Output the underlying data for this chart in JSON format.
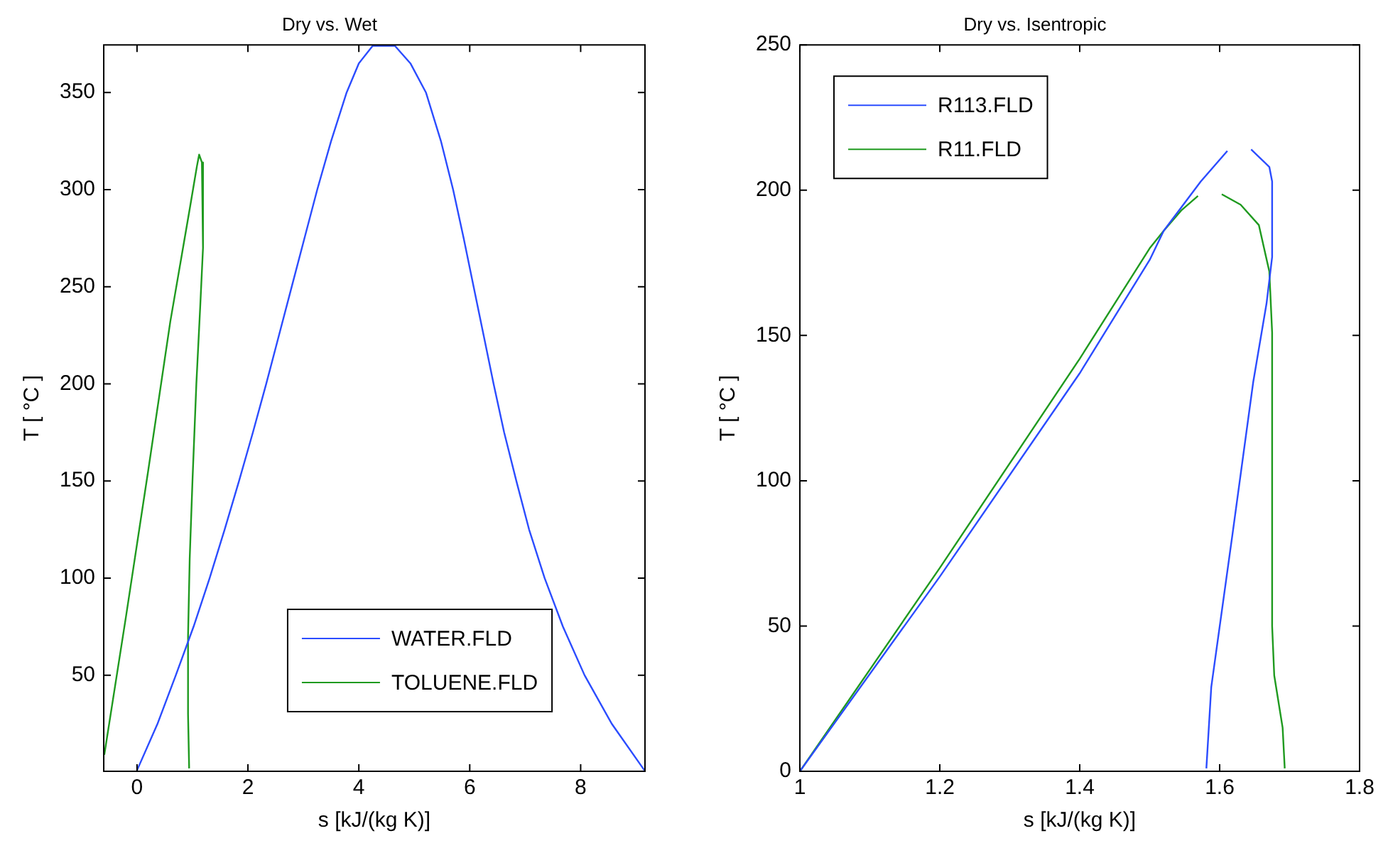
{
  "chart_data": [
    {
      "type": "line",
      "title": "Dry vs. Wet",
      "xlabel": "s [kJ/(kg K)]",
      "ylabel": "T [ °C ]",
      "xlim": [
        -0.6,
        9.16
      ],
      "xticks": [
        0,
        2,
        4,
        6,
        8
      ],
      "ylim": [
        0.5,
        374.5
      ],
      "yticks": [
        50,
        100,
        150,
        200,
        250,
        300,
        350
      ],
      "grid": false,
      "legend": "bottom",
      "marker": "none",
      "line_style": "solid",
      "series": [
        {
          "name": "WATER.FLD",
          "color": "#2b4cff",
          "x": [
            0,
            0.37,
            0.7,
            1.02,
            1.31,
            1.58,
            1.84,
            2.09,
            2.33,
            2.56,
            2.79,
            3.02,
            3.25,
            3.5,
            3.78,
            4.0,
            4.25,
            4.65,
            4.93,
            5.21,
            5.48,
            5.7,
            5.89,
            6.07,
            6.25,
            6.43,
            6.62,
            6.84,
            7.07,
            7.35,
            7.68,
            8.07,
            8.56,
            9.15
          ],
          "values": [
            1,
            25,
            50,
            75,
            100,
            125,
            150,
            175,
            200,
            225,
            250,
            275,
            300,
            325,
            350,
            365,
            374,
            374,
            365,
            350,
            325,
            300,
            275,
            250,
            225,
            200,
            175,
            150,
            125,
            100,
            75,
            50,
            25,
            1
          ]
        },
        {
          "name": "TOLUENE.FLD",
          "color": "#1f9a1f",
          "x": [
            -0.59,
            -0.2,
            0.2,
            0.6,
            0.95,
            1.08,
            1.12,
            1.17,
            1.19,
            1.14,
            1.07,
            1.0,
            0.95,
            0.92,
            0.92,
            0.94
          ],
          "values": [
            9,
            80,
            155,
            232,
            290,
            312,
            318,
            314,
            270,
            240,
            200,
            150,
            110,
            70,
            30,
            2
          ]
        }
      ]
    },
    {
      "type": "line",
      "title": "Dry vs. Isentropic",
      "xlabel": "s [kJ/(kg K)]",
      "ylabel": "T [ °C ]",
      "xlim": [
        1,
        1.8
      ],
      "xticks": [
        1,
        1.2,
        1.4,
        1.6,
        1.8
      ],
      "ylim": [
        0,
        250
      ],
      "yticks": [
        0,
        50,
        100,
        150,
        200,
        250
      ],
      "grid": false,
      "legend": "top left",
      "marker": "none",
      "line_style": "solid",
      "series": [
        {
          "name": "R113.FLD",
          "color": "#2b4cff",
          "x": [
            1,
            1.2,
            1.4,
            1.5,
            1.52,
            1.573,
            1.611,
            1.628,
            1.645,
            1.671,
            1.675,
            1.675,
            1.667,
            1.648,
            1.618,
            1.588,
            1.581
          ],
          "values": [
            0,
            67,
            137,
            176,
            186,
            203,
            213.5,
            null,
            214,
            208,
            203,
            177,
            161,
            134,
            81,
            29,
            1
          ]
        },
        {
          "name": "R11.FLD",
          "color": "#1f9a1f",
          "x": [
            1,
            1.2,
            1.4,
            1.5,
            1.52,
            1.545,
            1.569,
            1.586,
            1.603,
            1.63,
            1.656,
            1.671,
            1.675,
            1.675,
            1.678,
            1.69,
            1.693
          ],
          "values": [
            0,
            70,
            142,
            180,
            186,
            193,
            198,
            null,
            198.6,
            195,
            188,
            172,
            151,
            50,
            33,
            15,
            1
          ]
        }
      ]
    }
  ]
}
